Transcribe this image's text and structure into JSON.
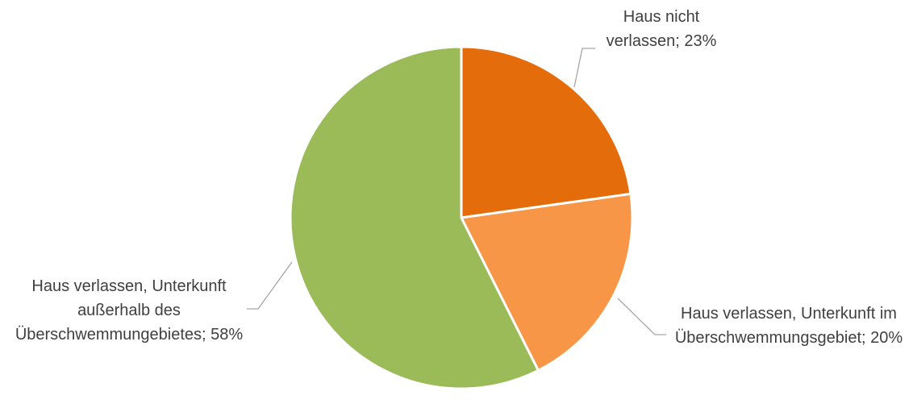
{
  "chart_data": {
    "type": "pie",
    "labels": [
      "Haus nicht verlassen; 23%",
      "Haus verlassen, Unterkunft im Überschwemmungsgebiet; 20%",
      "Haus verlassen, Unterkunft außerhalb des Überschwemmungebietes; 58%"
    ],
    "values": [
      23,
      20,
      58
    ],
    "colors": [
      "#e46c0a",
      "#f79646",
      "#9bbb59"
    ]
  }
}
